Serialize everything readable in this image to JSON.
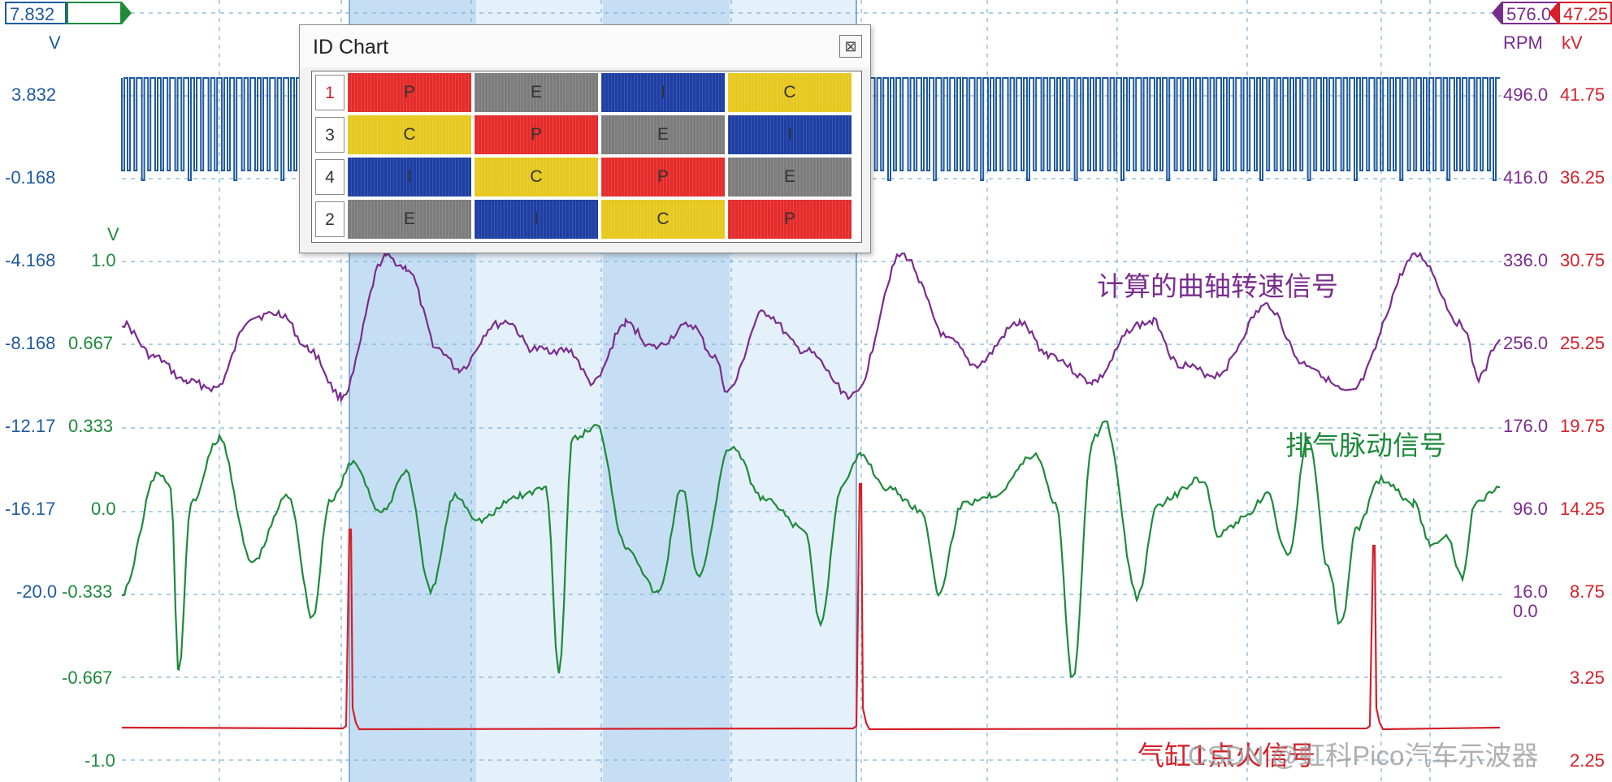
{
  "window": {
    "title": "ID Chart",
    "close_glyph": "⊠"
  },
  "id_chart": {
    "rows": [
      {
        "label": "1",
        "cells": [
          "P",
          "E",
          "I",
          "C"
        ]
      },
      {
        "label": "3",
        "cells": [
          "C",
          "P",
          "E",
          "I"
        ]
      },
      {
        "label": "4",
        "cells": [
          "I",
          "C",
          "P",
          "E"
        ]
      },
      {
        "label": "2",
        "cells": [
          "E",
          "I",
          "C",
          "P"
        ]
      }
    ],
    "stroke_colors": {
      "P": "#e52b2b",
      "E": "#7c7c7c",
      "I": "#1e3fa3",
      "C": "#e6c81f"
    }
  },
  "channels": {
    "a": {
      "unit": "V",
      "marker": "7.832",
      "ticks": [
        "3.832",
        "-0.168",
        "-4.168",
        "-8.168",
        "-12.17",
        "-16.17",
        "-20.0"
      ],
      "color": "#1f5a9e"
    },
    "b": {
      "unit": "V",
      "ticks": [
        "1.0",
        "0.667",
        "0.333",
        "0.0",
        "-0.333",
        "-0.667",
        "-1.0"
      ],
      "color": "#1e8a3b"
    },
    "rpm": {
      "unit": "RPM",
      "marker": "576.0",
      "ticks": [
        "496.0",
        "416.0",
        "336.0",
        "256.0",
        "176.0",
        "96.0",
        "16.0",
        "0.0"
      ],
      "color": "#7a2c8e"
    },
    "kv": {
      "unit": "kV",
      "marker": "47.25",
      "ticks": [
        "41.75",
        "36.25",
        "30.75",
        "25.25",
        "19.75",
        "14.25",
        "8.75",
        "3.25",
        "2.25"
      ],
      "color": "#d4202a"
    }
  },
  "annotations": {
    "rpm_signal": "计算的曲轴转速信号",
    "exhaust_signal": "排气脉动信号",
    "ignition_signal": "气缸1点火信号",
    "watermark": "CSDN @虹科Pico汽车示波器"
  }
}
